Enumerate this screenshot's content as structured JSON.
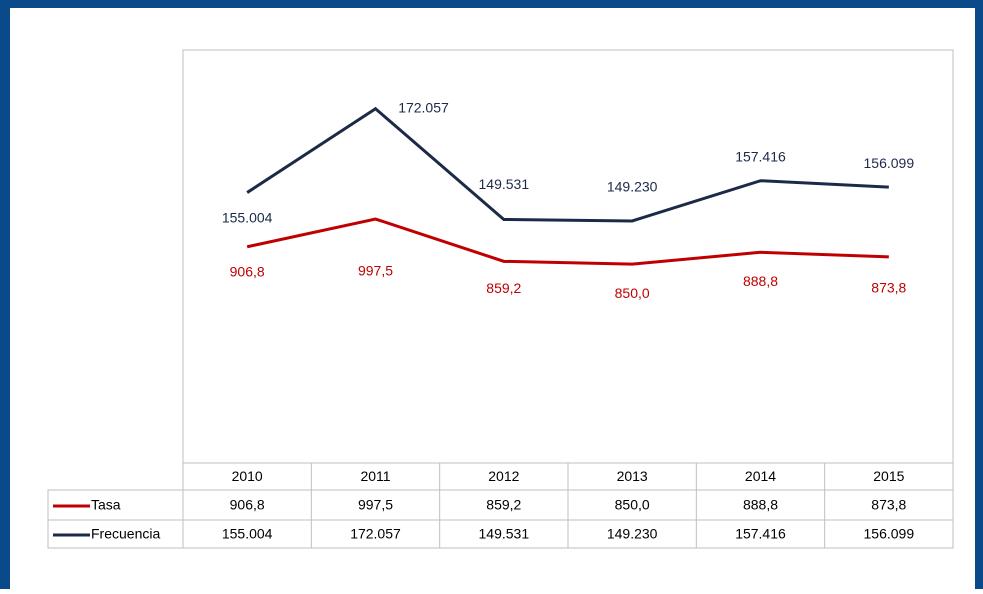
{
  "chart_data": {
    "type": "line",
    "categories": [
      "2010",
      "2011",
      "2012",
      "2013",
      "2014",
      "2015"
    ],
    "series": [
      {
        "name": "Tasa",
        "color": "#c00000",
        "values": [
          906.8,
          997.5,
          859.2,
          850.0,
          888.8,
          873.8
        ],
        "value_labels": [
          "906,8",
          "997,5",
          "859,2",
          "850,0",
          "888,8",
          "873,8"
        ]
      },
      {
        "name": "Frecuencia",
        "color": "#1c2a48",
        "axis": "y2",
        "values": [
          155004,
          172057,
          149531,
          149230,
          157416,
          156099
        ],
        "value_labels": [
          "155.004",
          "172.057",
          "149.531",
          "149.230",
          "157.416",
          "156.099"
        ]
      }
    ],
    "ylim": [
      200,
      1550
    ],
    "y2lim": [
      100000,
      184000
    ],
    "data_table": true
  }
}
